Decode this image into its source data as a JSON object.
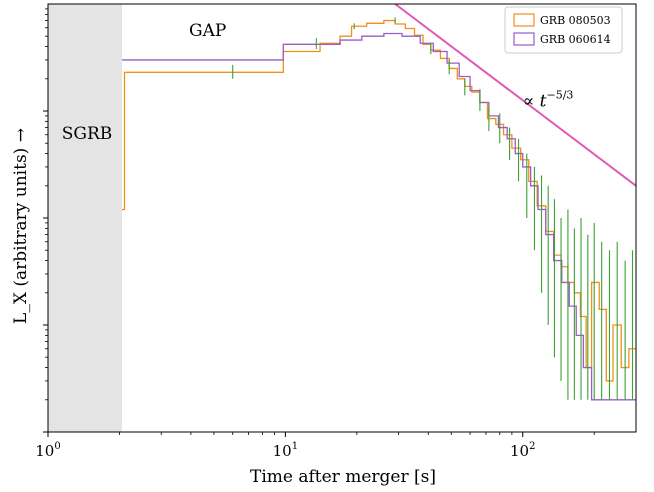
{
  "chart_data": {
    "type": "line",
    "title": "",
    "xlabel": "Time after merger [s]",
    "ylabel": "L_X (arbitrary units) →",
    "xscale": "log",
    "yscale": "log",
    "xlim": [
      1,
      300
    ],
    "ylim": [
      0.001,
      10
    ],
    "x_ticks": [
      {
        "value": 1,
        "base": "10",
        "exp": "0"
      },
      {
        "value": 10,
        "base": "10",
        "exp": "1"
      },
      {
        "value": 100,
        "base": "10",
        "exp": "2"
      }
    ],
    "grid": false,
    "legend_position": "top-right",
    "regions": [
      {
        "label": "SGRB",
        "x_from": 1,
        "x_to": 2.05,
        "color": "#e4e4e4"
      },
      {
        "label": "GAP",
        "x_from": 2.05,
        "x_to": 10
      }
    ],
    "annotation": {
      "text_prefix": "∝ t",
      "exponent": "−5/3",
      "x": 100,
      "y": 1.1
    },
    "series": [
      {
        "name": "GRB 080503",
        "color": "#f0901c",
        "x": [
          2.05,
          2.1,
          9.8,
          14,
          17,
          19,
          22,
          26,
          29,
          32,
          35,
          38,
          41,
          45,
          49,
          53,
          57,
          61,
          66,
          71,
          77,
          83,
          90,
          98,
          106,
          115,
          125,
          135,
          145,
          155,
          165,
          175,
          185,
          195,
          210,
          225,
          240,
          260,
          280
        ],
        "y": [
          0.12,
          2.3,
          3.6,
          4.3,
          5.0,
          6.2,
          6.6,
          7.0,
          6.5,
          5.9,
          5.1,
          4.2,
          3.7,
          3.1,
          2.5,
          2.0,
          1.7,
          1.5,
          1.2,
          0.85,
          0.75,
          0.6,
          0.45,
          0.35,
          0.22,
          0.13,
          0.075,
          0.045,
          0.035,
          0.025,
          0.02,
          0.012,
          0.004,
          0.025,
          0.014,
          0.003,
          0.01,
          0.004,
          0.006
        ]
      },
      {
        "name": "GRB 060614",
        "color": "#9a5cc6",
        "x": [
          2.05,
          9.8,
          17,
          21,
          26,
          31,
          37,
          42,
          48,
          54,
          60,
          66,
          72,
          79,
          86,
          93,
          100,
          108,
          116,
          125,
          135,
          146,
          157,
          168,
          180,
          195
        ],
        "y": [
          3.0,
          4.2,
          4.6,
          5.0,
          5.3,
          5.0,
          4.3,
          3.6,
          2.8,
          2.1,
          1.55,
          1.2,
          0.9,
          0.7,
          0.55,
          0.4,
          0.3,
          0.2,
          0.12,
          0.07,
          0.04,
          0.025,
          0.015,
          0.008,
          0.004,
          0.002
        ]
      },
      {
        "name": "",
        "color": "#df5bb9",
        "x": [
          29,
          300
        ],
        "y": [
          10.0,
          0.2
        ]
      }
    ],
    "error_bars": {
      "color": "#3ca033",
      "points": [
        {
          "x": 6,
          "lo": 2.0,
          "hi": 2.7
        },
        {
          "x": 13.5,
          "lo": 3.8,
          "hi": 4.8
        },
        {
          "x": 19.5,
          "lo": 5.8,
          "hi": 6.6
        },
        {
          "x": 29,
          "lo": 6.6,
          "hi": 7.5
        },
        {
          "x": 41,
          "lo": 3.4,
          "hi": 4.3
        },
        {
          "x": 49,
          "lo": 2.2,
          "hi": 3.0
        },
        {
          "x": 57,
          "lo": 1.4,
          "hi": 2.0
        },
        {
          "x": 66,
          "lo": 1.0,
          "hi": 1.6
        },
        {
          "x": 72,
          "lo": 0.65,
          "hi": 1.1
        },
        {
          "x": 80,
          "lo": 0.5,
          "hi": 0.95
        },
        {
          "x": 88,
          "lo": 0.35,
          "hi": 0.7
        },
        {
          "x": 96,
          "lo": 0.22,
          "hi": 0.55
        },
        {
          "x": 104,
          "lo": 0.1,
          "hi": 0.4
        },
        {
          "x": 112,
          "lo": 0.05,
          "hi": 0.3
        },
        {
          "x": 120,
          "lo": 0.02,
          "hi": 0.25
        },
        {
          "x": 128,
          "lo": 0.01,
          "hi": 0.2
        },
        {
          "x": 136,
          "lo": 0.005,
          "hi": 0.15
        },
        {
          "x": 145,
          "lo": 0.003,
          "hi": 0.1
        },
        {
          "x": 155,
          "lo": 0.002,
          "hi": 0.12
        },
        {
          "x": 165,
          "lo": 0.002,
          "hi": 0.08
        },
        {
          "x": 176,
          "lo": 0.002,
          "hi": 0.1
        },
        {
          "x": 188,
          "lo": 0.002,
          "hi": 0.07
        },
        {
          "x": 200,
          "lo": 0.002,
          "hi": 0.09
        },
        {
          "x": 215,
          "lo": 0.002,
          "hi": 0.06
        },
        {
          "x": 232,
          "lo": 0.002,
          "hi": 0.05
        },
        {
          "x": 250,
          "lo": 0.002,
          "hi": 0.06
        },
        {
          "x": 270,
          "lo": 0.002,
          "hi": 0.04
        },
        {
          "x": 290,
          "lo": 0.002,
          "hi": 0.05
        }
      ]
    }
  }
}
